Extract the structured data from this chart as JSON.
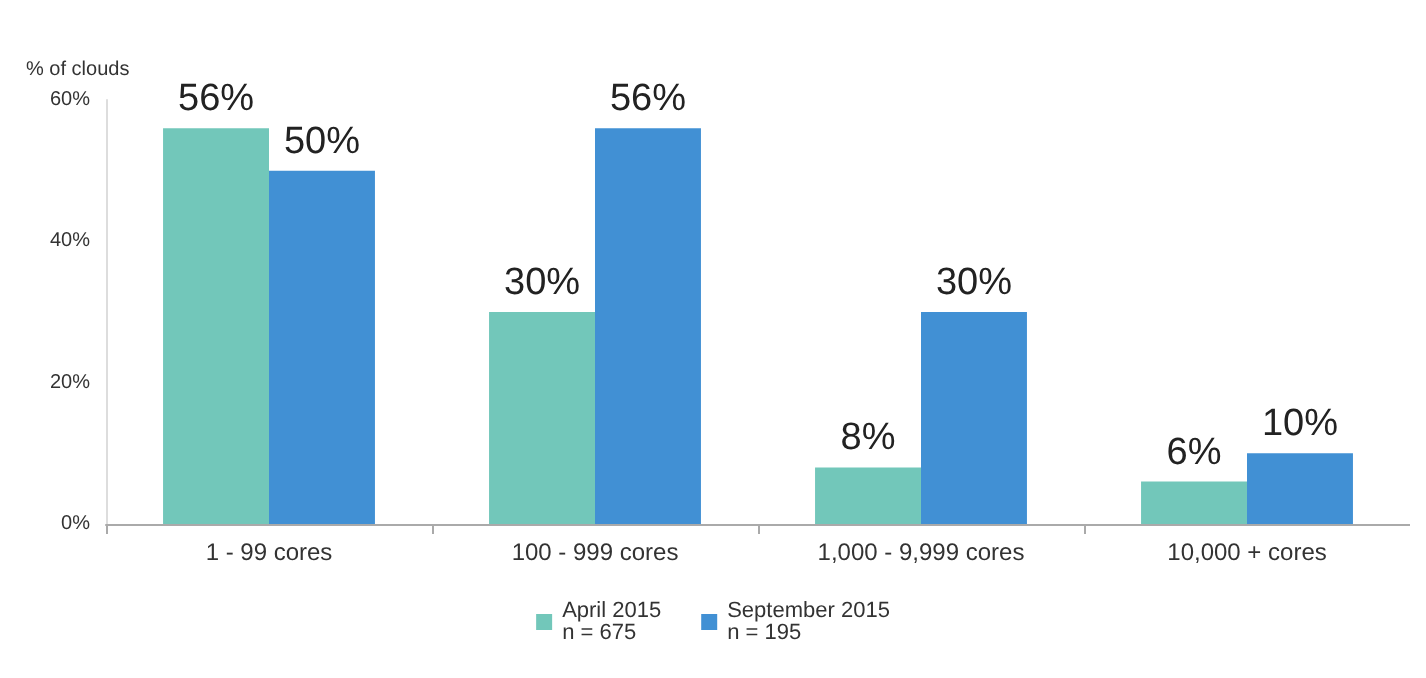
{
  "chart_data": {
    "type": "bar",
    "ylabel": "% of clouds",
    "categories": [
      "1 - 99 cores",
      "100 - 999 cores",
      "1,000 - 9,999 cores",
      "10,000 + cores"
    ],
    "series": [
      {
        "name": "April 2015\nn = 675",
        "color": "#72c7ba",
        "values": [
          56,
          30,
          8,
          6
        ],
        "value_labels": [
          "56%",
          "30%",
          "8%",
          "6%"
        ]
      },
      {
        "name": "September 2015\nn = 195",
        "color": "#4190d4",
        "values": [
          50,
          56,
          30,
          10
        ],
        "value_labels": [
          "50%",
          "56%",
          "30%",
          "10%"
        ]
      }
    ],
    "ylim": [
      0,
      60
    ],
    "yticks": [
      {
        "value": 0,
        "label": "0%"
      },
      {
        "value": 20,
        "label": "20%"
      },
      {
        "value": 40,
        "label": "40%"
      },
      {
        "value": 60,
        "label": "60%"
      }
    ],
    "grid": false,
    "legend": "bottom"
  }
}
